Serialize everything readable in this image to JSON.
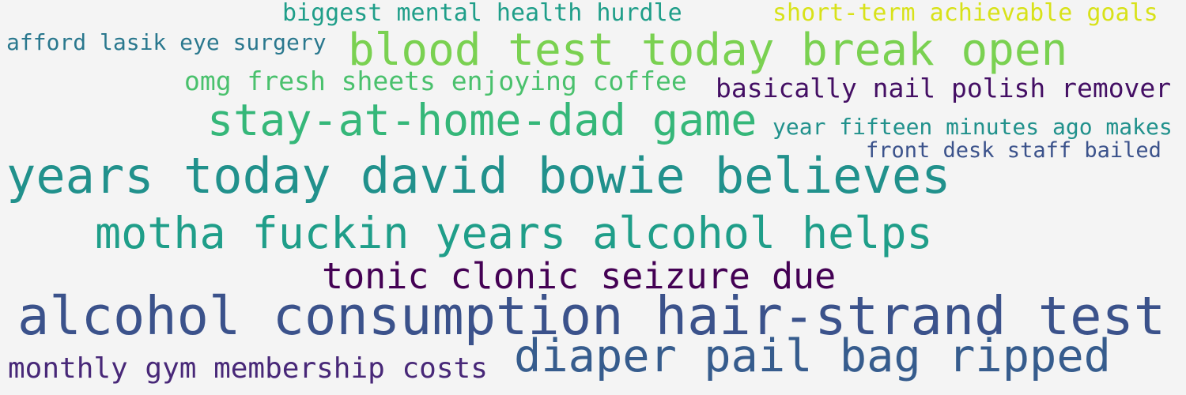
{
  "word_cloud": {
    "background": "#f4f4f4",
    "words": [
      {
        "text": "biggest mental health hurdle",
        "color": "#1f9e89"
      },
      {
        "text": "short-term achievable goals",
        "color": "#d8e219"
      },
      {
        "text": "afford lasik eye surgery",
        "color": "#2a788e"
      },
      {
        "text": "blood test today break open",
        "color": "#7ad151"
      },
      {
        "text": "omg fresh sheets enjoying coffee",
        "color": "#4ac16d"
      },
      {
        "text": "basically nail polish remover",
        "color": "#440f64"
      },
      {
        "text": "stay-at-home-dad game",
        "color": "#35b779"
      },
      {
        "text": "year fifteen minutes ago makes",
        "color": "#21918c"
      },
      {
        "text": "front desk staff bailed",
        "color": "#3b528b"
      },
      {
        "text": "years today david bowie believes",
        "color": "#21918c"
      },
      {
        "text": "motha fuckin years alcohol helps",
        "color": "#1f9e89"
      },
      {
        "text": "tonic clonic seizure due",
        "color": "#440154"
      },
      {
        "text": "alcohol consumption hair-strand test",
        "color": "#3b528b"
      },
      {
        "text": "diaper pail bag ripped",
        "color": "#365c8d"
      },
      {
        "text": "monthly gym membership costs",
        "color": "#482878"
      }
    ]
  }
}
